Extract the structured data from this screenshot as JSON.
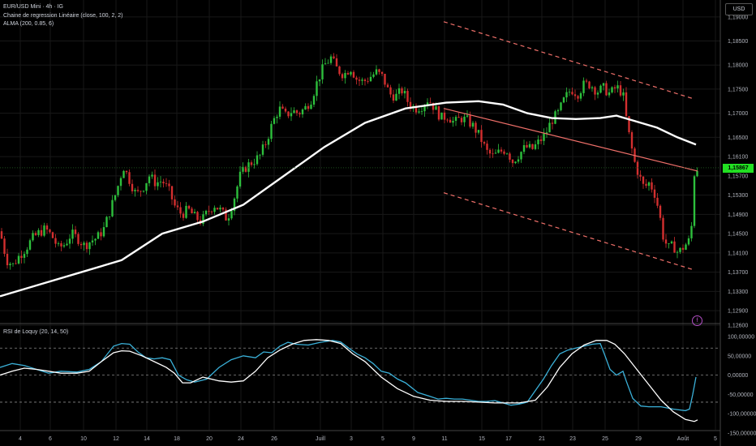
{
  "legend": {
    "main": "EUR/USD Mini · 4h · IG",
    "regression": "Chaine de regression Linéaire (close, 100, 2, 2)",
    "alma": "ALMA (200, 0.85, 6)",
    "rsi": "RSI de Loquy (20, 14, 50)"
  },
  "currency": "USD",
  "last_price": "1,15867",
  "event_icon": "earnings-f-icon",
  "colors": {
    "up": "#2dbf3c",
    "down": "#d32f2f",
    "alma": "#ffffff",
    "regression": "#f0706a",
    "rsi": "#3ab0d8",
    "rsi_signal": "#ffffff",
    "price_tag": "#22e022",
    "grid": "#181818"
  },
  "chart_data": [
    {
      "type": "candlestick",
      "title": "EUR/USD Mini · 4h · IG",
      "x_ticks": [
        "4",
        "6",
        "10",
        "12",
        "14",
        "18",
        "20",
        "24",
        "26",
        "Juill",
        "3",
        "5",
        "9",
        "11",
        "15",
        "17",
        "21",
        "23",
        "25",
        "29",
        "Août",
        "5"
      ],
      "y_ticks": [
        "1,19000",
        "1,18500",
        "1,18000",
        "1,17500",
        "1,17000",
        "1,16500",
        "1,16100",
        "1,15700",
        "1,15300",
        "1,14900",
        "1,14500",
        "1,14100",
        "1,13700",
        "1,13300",
        "1,12900",
        "1,12600"
      ],
      "ylim": [
        1.126,
        1.193
      ],
      "close_path": [
        [
          0,
          1.1455
        ],
        [
          8,
          1.1395
        ],
        [
          16,
          1.1385
        ],
        [
          24,
          1.1405
        ],
        [
          32,
          1.142
        ],
        [
          40,
          1.144
        ],
        [
          48,
          1.1452
        ],
        [
          56,
          1.146
        ],
        [
          64,
          1.1445
        ],
        [
          72,
          1.142
        ],
        [
          80,
          1.1428
        ],
        [
          88,
          1.145
        ],
        [
          96,
          1.144
        ],
        [
          104,
          1.1425
        ],
        [
          112,
          1.1435
        ],
        [
          120,
          1.1442
        ],
        [
          128,
          1.146
        ],
        [
          136,
          1.15
        ],
        [
          144,
          1.154
        ],
        [
          152,
          1.159
        ],
        [
          160,
          1.156
        ],
        [
          168,
          1.153
        ],
        [
          176,
          1.1545
        ],
        [
          184,
          1.157
        ],
        [
          192,
          1.1555
        ],
        [
          200,
          1.156
        ],
        [
          208,
          1.154
        ],
        [
          216,
          1.1505
        ],
        [
          224,
          1.149
        ],
        [
          232,
          1.15
        ],
        [
          240,
          1.1485
        ],
        [
          248,
          1.1475
        ],
        [
          256,
          1.1495
        ],
        [
          264,
          1.151
        ],
        [
          272,
          1.1498
        ],
        [
          280,
          1.148
        ],
        [
          288,
          1.152
        ],
        [
          296,
          1.157
        ],
        [
          304,
          1.159
        ],
        [
          312,
          1.16
        ],
        [
          320,
          1.161
        ],
        [
          328,
          1.164
        ],
        [
          336,
          1.168
        ],
        [
          344,
          1.171
        ],
        [
          352,
          1.1695
        ],
        [
          360,
          1.1705
        ],
        [
          368,
          1.17
        ],
        [
          376,
          1.171
        ],
        [
          384,
          1.173
        ],
        [
          392,
          1.177
        ],
        [
          400,
          1.18
        ],
        [
          408,
          1.1815
        ],
        [
          416,
          1.179
        ],
        [
          424,
          1.178
        ],
        [
          432,
          1.1795
        ],
        [
          440,
          1.177
        ],
        [
          448,
          1.1765
        ],
        [
          456,
          1.1775
        ],
        [
          464,
          1.1785
        ],
        [
          472,
          1.1775
        ],
        [
          480,
          1.174
        ],
        [
          488,
          1.1735
        ],
        [
          496,
          1.1748
        ],
        [
          504,
          1.172
        ],
        [
          512,
          1.171
        ],
        [
          520,
          1.1715
        ],
        [
          528,
          1.173
        ],
        [
          536,
          1.171
        ],
        [
          544,
          1.169
        ],
        [
          552,
          1.1695
        ],
        [
          560,
          1.168
        ],
        [
          568,
          1.169
        ],
        [
          576,
          1.1685
        ],
        [
          584,
          1.1672
        ],
        [
          592,
          1.165
        ],
        [
          600,
          1.162
        ],
        [
          608,
          1.161
        ],
        [
          616,
          1.162
        ],
        [
          624,
          1.1625
        ],
        [
          632,
          1.16
        ],
        [
          640,
          1.1615
        ],
        [
          648,
          1.163
        ],
        [
          656,
          1.1625
        ],
        [
          664,
          1.164
        ],
        [
          672,
          1.1655
        ],
        [
          680,
          1.1685
        ],
        [
          688,
          1.17
        ],
        [
          696,
          1.173
        ],
        [
          704,
          1.175
        ],
        [
          712,
          1.174
        ],
        [
          720,
          1.176
        ],
        [
          728,
          1.176
        ],
        [
          736,
          1.1745
        ],
        [
          744,
          1.1752
        ],
        [
          752,
          1.174
        ],
        [
          760,
          1.1755
        ],
        [
          768,
          1.174
        ],
        [
          772,
          1.169
        ],
        [
          776,
          1.165
        ],
        [
          782,
          1.16
        ],
        [
          788,
          1.157
        ],
        [
          794,
          1.1545
        ],
        [
          800,
          1.1555
        ],
        [
          806,
          1.154
        ],
        [
          812,
          1.15
        ],
        [
          818,
          1.144
        ],
        [
          824,
          1.142
        ],
        [
          830,
          1.1425
        ],
        [
          836,
          1.141
        ],
        [
          844,
          1.1425
        ],
        [
          852,
          1.144
        ],
        [
          854,
          1.154
        ],
        [
          856,
          1.1575
        ],
        [
          860,
          1.1587
        ]
      ],
      "alma": [
        [
          0,
          1.132
        ],
        [
          50,
          1.1345
        ],
        [
          100,
          1.137
        ],
        [
          150,
          1.1395
        ],
        [
          200,
          1.145
        ],
        [
          250,
          1.1475
        ],
        [
          300,
          1.151
        ],
        [
          350,
          1.157
        ],
        [
          400,
          1.163
        ],
        [
          450,
          1.168
        ],
        [
          500,
          1.171
        ],
        [
          550,
          1.1722
        ],
        [
          590,
          1.1725
        ],
        [
          620,
          1.1718
        ],
        [
          650,
          1.17
        ],
        [
          680,
          1.169
        ],
        [
          710,
          1.1688
        ],
        [
          740,
          1.169
        ],
        [
          760,
          1.1695
        ],
        [
          780,
          1.1685
        ],
        [
          810,
          1.167
        ],
        [
          835,
          1.165
        ],
        [
          858,
          1.1635
        ]
      ],
      "regression": {
        "x": [
          547,
          860
        ],
        "mid": [
          1.171,
          1.158
        ],
        "upper": [
          1.189,
          1.173
        ],
        "lower": [
          1.1535,
          1.1375
        ]
      }
    },
    {
      "type": "line",
      "title": "RSI de Loquy (20, 14, 50)",
      "y_ticks": [
        "100,00000",
        "50,00000",
        "0,00000",
        "-50,00000",
        "-100,00000",
        "-150,00000"
      ],
      "ylim": [
        -150,
        100
      ],
      "levels": [
        70,
        0,
        -70
      ],
      "series": [
        {
          "values": [
            [
              0,
              20
            ],
            [
              15,
              30
            ],
            [
              30,
              25
            ],
            [
              45,
              15
            ],
            [
              60,
              5
            ],
            [
              75,
              10
            ],
            [
              95,
              8
            ],
            [
              110,
              15
            ],
            [
              125,
              35
            ],
            [
              140,
              75
            ],
            [
              150,
              82
            ],
            [
              160,
              80
            ],
            [
              170,
              60
            ],
            [
              180,
              45
            ],
            [
              190,
              42
            ],
            [
              200,
              45
            ],
            [
              210,
              40
            ],
            [
              220,
              0
            ],
            [
              230,
              -12
            ],
            [
              240,
              -18
            ],
            [
              255,
              -10
            ],
            [
              270,
              20
            ],
            [
              285,
              40
            ],
            [
              300,
              50
            ],
            [
              315,
              45
            ],
            [
              325,
              60
            ],
            [
              335,
              58
            ],
            [
              345,
              75
            ],
            [
              355,
              85
            ],
            [
              365,
              80
            ],
            [
              380,
              78
            ],
            [
              395,
              85
            ],
            [
              410,
              90
            ],
            [
              420,
              86
            ],
            [
              430,
              70
            ],
            [
              440,
              55
            ],
            [
              450,
              45
            ],
            [
              460,
              30
            ],
            [
              470,
              10
            ],
            [
              480,
              5
            ],
            [
              490,
              -10
            ],
            [
              500,
              -20
            ],
            [
              515,
              -45
            ],
            [
              530,
              -55
            ],
            [
              540,
              -62
            ],
            [
              550,
              -60
            ],
            [
              560,
              -62
            ],
            [
              570,
              -62
            ],
            [
              580,
              -65
            ],
            [
              590,
              -68
            ],
            [
              600,
              -68
            ],
            [
              610,
              -66
            ],
            [
              620,
              -72
            ],
            [
              630,
              -78
            ],
            [
              640,
              -75
            ],
            [
              650,
              -70
            ],
            [
              660,
              -40
            ],
            [
              670,
              -10
            ],
            [
              680,
              25
            ],
            [
              690,
              55
            ],
            [
              700,
              65
            ],
            [
              710,
              70
            ],
            [
              720,
              75
            ],
            [
              730,
              80
            ],
            [
              740,
              82
            ],
            [
              745,
              55
            ],
            [
              752,
              15
            ],
            [
              760,
              0
            ],
            [
              768,
              10
            ],
            [
              772,
              -15
            ],
            [
              780,
              -60
            ],
            [
              790,
              -80
            ],
            [
              800,
              -82
            ],
            [
              815,
              -82
            ],
            [
              830,
              -88
            ],
            [
              845,
              -92
            ],
            [
              850,
              -88
            ],
            [
              854,
              -50
            ],
            [
              858,
              -5
            ]
          ]
        },
        {
          "values": [
            [
              0,
              0
            ],
            [
              15,
              10
            ],
            [
              30,
              18
            ],
            [
              45,
              15
            ],
            [
              60,
              10
            ],
            [
              75,
              5
            ],
            [
              95,
              5
            ],
            [
              110,
              10
            ],
            [
              125,
              35
            ],
            [
              140,
              58
            ],
            [
              150,
              63
            ],
            [
              160,
              62
            ],
            [
              175,
              50
            ],
            [
              190,
              35
            ],
            [
              205,
              20
            ],
            [
              215,
              5
            ],
            [
              225,
              -20
            ],
            [
              235,
              -20
            ],
            [
              250,
              -5
            ],
            [
              270,
              -15
            ],
            [
              285,
              -18
            ],
            [
              300,
              -15
            ],
            [
              315,
              10
            ],
            [
              330,
              45
            ],
            [
              345,
              65
            ],
            [
              360,
              80
            ],
            [
              375,
              90
            ],
            [
              390,
              92
            ],
            [
              405,
              90
            ],
            [
              420,
              82
            ],
            [
              435,
              55
            ],
            [
              450,
              35
            ],
            [
              470,
              -5
            ],
            [
              490,
              -35
            ],
            [
              510,
              -55
            ],
            [
              530,
              -65
            ],
            [
              550,
              -68
            ],
            [
              570,
              -68
            ],
            [
              590,
              -70
            ],
            [
              610,
              -72
            ],
            [
              640,
              -72
            ],
            [
              660,
              -65
            ],
            [
              675,
              -30
            ],
            [
              690,
              20
            ],
            [
              705,
              55
            ],
            [
              720,
              78
            ],
            [
              735,
              90
            ],
            [
              748,
              90
            ],
            [
              758,
              80
            ],
            [
              770,
              55
            ],
            [
              785,
              15
            ],
            [
              800,
              -25
            ],
            [
              815,
              -65
            ],
            [
              830,
              -95
            ],
            [
              845,
              -115
            ],
            [
              856,
              -120
            ],
            [
              860,
              -116
            ]
          ]
        }
      ]
    }
  ]
}
